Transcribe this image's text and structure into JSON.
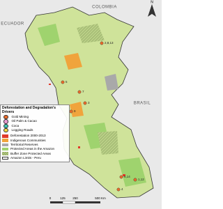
{
  "countries": [
    "COLOMBIA",
    "ECUADOR",
    "BRASIL"
  ],
  "north": "N",
  "sites": [
    "2,8,13",
    "5",
    "7",
    "9",
    "3",
    "6,14",
    "1,12",
    "4"
  ],
  "legend": {
    "title": "Deforestation and Degradation's Drivers",
    "drivers": [
      "Gold Mining",
      "Oil Palm & Cacao",
      "Coca",
      "Logging Roads"
    ],
    "areas": [
      "Deforestation 2000-2013",
      "Indigenous Communities",
      "Territorial Reserves",
      "Protected Areas in the Amazon",
      "Buffer Zone Protected Areas",
      "Amazon Limits - Peru"
    ]
  },
  "scale": [
    "0",
    "125",
    "250",
    "500 Km"
  ]
}
